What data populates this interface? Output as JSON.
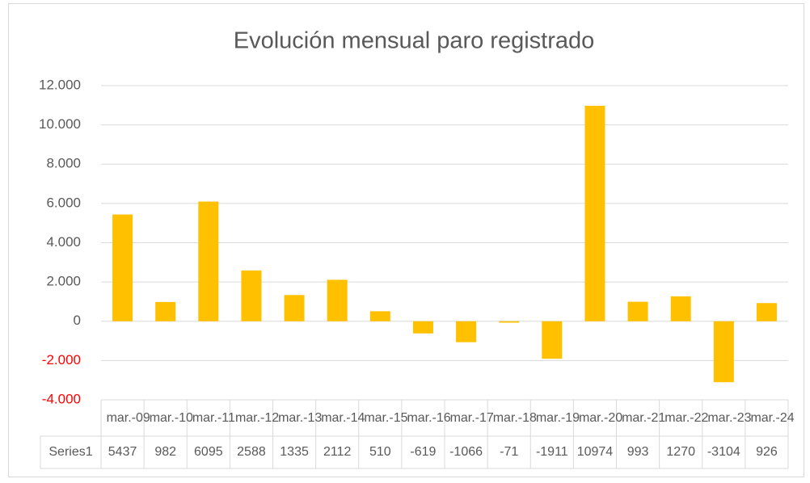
{
  "chart_data": {
    "type": "bar",
    "title": "Evolución mensual paro registrado",
    "categories": [
      "mar.-09",
      "mar.-10",
      "mar.-11",
      "mar.-12",
      "mar.-13",
      "mar.-14",
      "mar.-15",
      "mar.-16",
      "mar.-17",
      "mar.-18",
      "mar.-19",
      "mar.-20",
      "mar.-21",
      "mar.-22",
      "mar.-23",
      "mar.-24"
    ],
    "series": [
      {
        "name": "Series1",
        "color": "#ffc000",
        "values": [
          5437,
          982,
          6095,
          2588,
          1335,
          2112,
          510,
          -619,
          -1066,
          -71,
          -1911,
          10974,
          993,
          1270,
          -3104,
          926
        ]
      }
    ],
    "ylim": [
      -4000,
      12000
    ],
    "yticks": [
      {
        "value": -4000,
        "label": "-4.000"
      },
      {
        "value": -2000,
        "label": "-2.000"
      },
      0,
      {
        "value": 2000,
        "label": "2.000"
      },
      {
        "value": 4000,
        "label": "4.000"
      },
      {
        "value": 6000,
        "label": "6.000"
      },
      {
        "value": 8000,
        "label": "8.000"
      },
      {
        "value": 10000,
        "label": "10.000"
      },
      {
        "value": 12000,
        "label": "12.000"
      }
    ],
    "negative_tick_color": "#ff0000",
    "grid": true,
    "data_table": true
  }
}
